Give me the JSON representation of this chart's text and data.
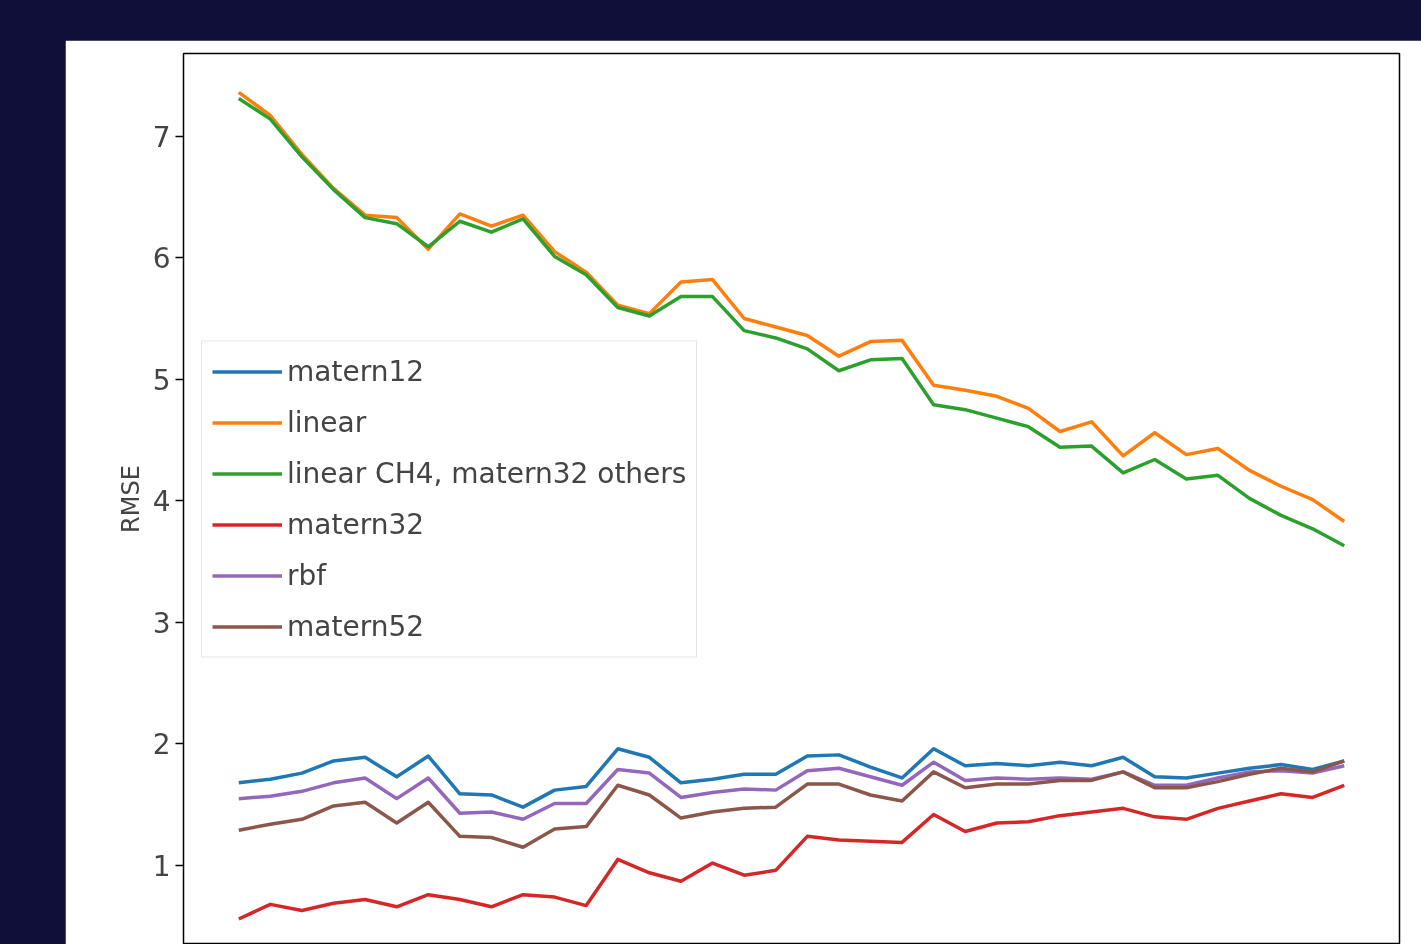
{
  "chart_data": {
    "type": "line",
    "ylabel": "RMSE",
    "categories": [
      null,
      null,
      null,
      null,
      null,
      null,
      null,
      null,
      null,
      null,
      null,
      null,
      null,
      null,
      null,
      null,
      null,
      null,
      null,
      null,
      null,
      null,
      null,
      null,
      null,
      null,
      null,
      null,
      null,
      null,
      null,
      null,
      null,
      null,
      null,
      null
    ],
    "ylim": [
      0.35,
      7.68
    ],
    "yticks": [
      1,
      2,
      3,
      4,
      5,
      6,
      7
    ],
    "tick_labels": "y",
    "grid": false,
    "legend": "left",
    "line_style": "solid",
    "marker": "none",
    "series": [
      {
        "name": "matern12",
        "color": "#1f77b4",
        "values": [
          1.68,
          1.71,
          1.76,
          1.86,
          1.89,
          1.73,
          1.9,
          1.59,
          1.58,
          1.48,
          1.62,
          1.65,
          1.96,
          1.89,
          1.68,
          1.71,
          1.75,
          1.75,
          1.9,
          1.91,
          1.81,
          1.72,
          1.96,
          1.82,
          1.84,
          1.82,
          1.85,
          1.82,
          1.89,
          1.73,
          1.72,
          1.76,
          1.8,
          1.83,
          1.79,
          1.86
        ]
      },
      {
        "name": "linear",
        "color": "#ff7f0e",
        "values": [
          7.36,
          7.17,
          6.85,
          6.57,
          6.35,
          6.33,
          6.07,
          6.36,
          6.26,
          6.35,
          6.05,
          5.88,
          5.61,
          5.54,
          5.8,
          5.82,
          5.5,
          5.43,
          5.36,
          5.19,
          5.31,
          5.32,
          4.95,
          4.91,
          4.86,
          4.76,
          4.57,
          4.65,
          4.37,
          4.56,
          4.38,
          4.43,
          4.25,
          4.12,
          4.01,
          3.83
        ]
      },
      {
        "name": "linear CH4, matern32 others",
        "color": "#2ca02c",
        "values": [
          7.31,
          7.14,
          6.83,
          6.56,
          6.33,
          6.28,
          6.09,
          6.3,
          6.21,
          6.32,
          6.01,
          5.86,
          5.59,
          5.52,
          5.68,
          5.68,
          5.4,
          5.34,
          5.25,
          5.07,
          5.16,
          5.17,
          4.79,
          4.75,
          4.68,
          4.61,
          4.44,
          4.45,
          4.23,
          4.34,
          4.18,
          4.21,
          4.02,
          3.88,
          3.77,
          3.63
        ]
      },
      {
        "name": "matern32",
        "color": "#d62728",
        "values": [
          0.56,
          0.68,
          0.63,
          0.69,
          0.72,
          0.66,
          0.76,
          0.72,
          0.66,
          0.76,
          0.74,
          0.67,
          1.05,
          0.94,
          0.87,
          1.02,
          0.92,
          0.96,
          1.24,
          1.21,
          1.2,
          1.19,
          1.42,
          1.28,
          1.35,
          1.36,
          1.41,
          1.44,
          1.47,
          1.4,
          1.38,
          1.47,
          1.53,
          1.59,
          1.56,
          1.66
        ]
      },
      {
        "name": "rbf",
        "color": "#9467bd",
        "values": [
          1.55,
          1.57,
          1.61,
          1.68,
          1.72,
          1.55,
          1.72,
          1.43,
          1.44,
          1.38,
          1.51,
          1.51,
          1.79,
          1.76,
          1.56,
          1.6,
          1.63,
          1.62,
          1.78,
          1.8,
          1.73,
          1.66,
          1.85,
          1.7,
          1.72,
          1.71,
          1.72,
          1.71,
          1.77,
          1.66,
          1.66,
          1.72,
          1.77,
          1.78,
          1.76,
          1.82
        ]
      },
      {
        "name": "matern52",
        "color": "#8c564b",
        "values": [
          1.29,
          1.34,
          1.38,
          1.49,
          1.52,
          1.35,
          1.52,
          1.24,
          1.23,
          1.15,
          1.3,
          1.32,
          1.66,
          1.58,
          1.39,
          1.44,
          1.47,
          1.48,
          1.67,
          1.67,
          1.58,
          1.53,
          1.77,
          1.64,
          1.67,
          1.67,
          1.7,
          1.7,
          1.77,
          1.64,
          1.64,
          1.69,
          1.75,
          1.8,
          1.77,
          1.86
        ]
      }
    ]
  }
}
